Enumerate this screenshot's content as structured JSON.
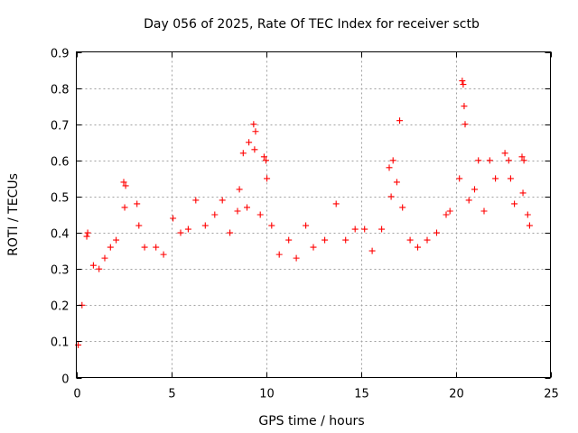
{
  "chart_data": {
    "type": "scatter",
    "title": "Day 056 of 2025, Rate Of TEC Index for receiver sctb",
    "xlabel": "GPS time / hours",
    "ylabel": "ROTI / TECUs",
    "xlim": [
      0,
      25
    ],
    "ylim": [
      0,
      0.9
    ],
    "x_ticks": [
      0,
      5,
      10,
      15,
      20,
      25
    ],
    "x_tick_labels": [
      "0",
      "5",
      "10",
      "15",
      "20",
      "25"
    ],
    "y_ticks": [
      0,
      0.1,
      0.2,
      0.3,
      0.4,
      0.5,
      0.6,
      0.7,
      0.8,
      0.9
    ],
    "y_tick_labels": [
      "0",
      "0.1",
      "0.2",
      "0.3",
      "0.4",
      "0.5",
      "0.6",
      "0.7",
      "0.8",
      "0.9"
    ],
    "grid": true,
    "marker": "plus",
    "color": "#ff0000",
    "series": [
      {
        "name": "ROTI",
        "points": [
          [
            0.1,
            0.09
          ],
          [
            0.3,
            0.2
          ],
          [
            0.55,
            0.39
          ],
          [
            0.6,
            0.4
          ],
          [
            0.9,
            0.31
          ],
          [
            1.2,
            0.3
          ],
          [
            1.5,
            0.33
          ],
          [
            1.8,
            0.36
          ],
          [
            2.1,
            0.38
          ],
          [
            2.5,
            0.54
          ],
          [
            2.6,
            0.53
          ],
          [
            2.55,
            0.47
          ],
          [
            3.2,
            0.48
          ],
          [
            3.3,
            0.42
          ],
          [
            3.6,
            0.36
          ],
          [
            4.2,
            0.36
          ],
          [
            4.6,
            0.34
          ],
          [
            5.1,
            0.44
          ],
          [
            5.5,
            0.4
          ],
          [
            5.9,
            0.41
          ],
          [
            6.3,
            0.49
          ],
          [
            6.8,
            0.42
          ],
          [
            7.3,
            0.45
          ],
          [
            7.7,
            0.49
          ],
          [
            8.1,
            0.4
          ],
          [
            8.5,
            0.46
          ],
          [
            8.6,
            0.52
          ],
          [
            8.8,
            0.62
          ],
          [
            9.0,
            0.47
          ],
          [
            9.1,
            0.65
          ],
          [
            9.35,
            0.7
          ],
          [
            9.45,
            0.68
          ],
          [
            9.4,
            0.63
          ],
          [
            9.7,
            0.45
          ],
          [
            9.9,
            0.61
          ],
          [
            10.0,
            0.6
          ],
          [
            10.05,
            0.55
          ],
          [
            10.3,
            0.42
          ],
          [
            10.7,
            0.34
          ],
          [
            11.2,
            0.38
          ],
          [
            11.6,
            0.33
          ],
          [
            12.1,
            0.42
          ],
          [
            12.5,
            0.36
          ],
          [
            13.1,
            0.38
          ],
          [
            13.7,
            0.48
          ],
          [
            14.2,
            0.38
          ],
          [
            14.7,
            0.41
          ],
          [
            15.2,
            0.41
          ],
          [
            15.6,
            0.35
          ],
          [
            16.1,
            0.41
          ],
          [
            16.5,
            0.58
          ],
          [
            16.6,
            0.5
          ],
          [
            16.7,
            0.6
          ],
          [
            16.9,
            0.54
          ],
          [
            17.05,
            0.71
          ],
          [
            17.2,
            0.47
          ],
          [
            17.6,
            0.38
          ],
          [
            18.0,
            0.36
          ],
          [
            18.5,
            0.38
          ],
          [
            19.0,
            0.4
          ],
          [
            19.5,
            0.45
          ],
          [
            19.7,
            0.46
          ],
          [
            20.2,
            0.55
          ],
          [
            20.35,
            0.82
          ],
          [
            20.4,
            0.81
          ],
          [
            20.45,
            0.75
          ],
          [
            20.5,
            0.7
          ],
          [
            20.7,
            0.49
          ],
          [
            21.0,
            0.52
          ],
          [
            21.2,
            0.6
          ],
          [
            21.5,
            0.46
          ],
          [
            21.8,
            0.6
          ],
          [
            22.1,
            0.55
          ],
          [
            22.6,
            0.62
          ],
          [
            22.8,
            0.6
          ],
          [
            22.9,
            0.55
          ],
          [
            23.1,
            0.48
          ],
          [
            23.5,
            0.61
          ],
          [
            23.6,
            0.6
          ],
          [
            23.55,
            0.51
          ],
          [
            23.8,
            0.45
          ],
          [
            23.9,
            0.42
          ]
        ]
      }
    ]
  }
}
